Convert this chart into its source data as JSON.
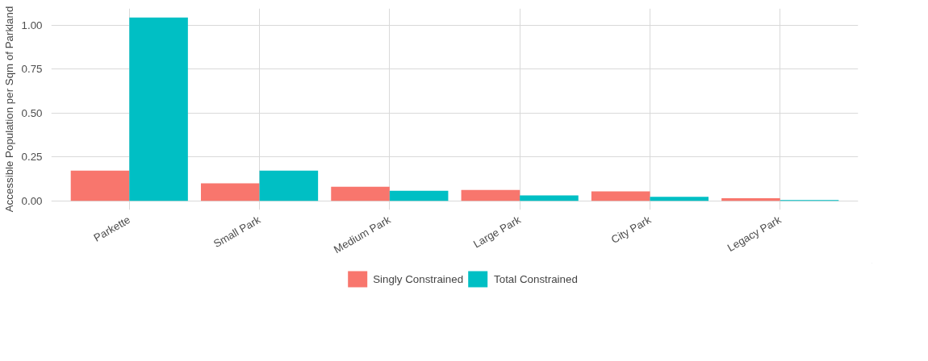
{
  "chart_data": {
    "type": "bar",
    "ylabel": "Accessible Population per Sqm of Parkland",
    "categories": [
      "Parkette",
      "Small Park",
      "Medium Park",
      "Large Park",
      "City Park",
      "Legacy Park"
    ],
    "series": [
      {
        "name": "Singly Constrained",
        "color": "#f8766d",
        "values": [
          0.172,
          0.099,
          0.08,
          0.061,
          0.053,
          0.015
        ]
      },
      {
        "name": "Total Constrained",
        "color": "#00bfc4",
        "values": [
          1.042,
          0.172,
          0.057,
          0.031,
          0.023,
          0.004
        ]
      }
    ],
    "ylim": [
      -0.052,
      1.094
    ],
    "yticks": [
      {
        "value": 0,
        "label": "0.00"
      },
      {
        "value": 0.25,
        "label": "0.25"
      },
      {
        "value": 0.5,
        "label": "0.50"
      },
      {
        "value": 0.75,
        "label": "0.75"
      },
      {
        "value": 1,
        "label": "1.00"
      }
    ],
    "grid": true,
    "legend": "bottom"
  }
}
